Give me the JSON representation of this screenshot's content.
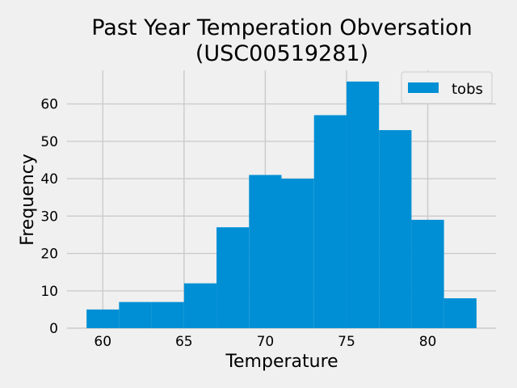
{
  "chart_data": {
    "type": "bar",
    "title_line1": "Past Year Temperation Obversation",
    "title_line2": "(USC00519281)",
    "xlabel": "Temperature",
    "ylabel": "Frequency",
    "bins": [
      {
        "x0": 59,
        "x1": 61,
        "count": 5
      },
      {
        "x0": 61,
        "x1": 63,
        "count": 7
      },
      {
        "x0": 63,
        "x1": 65,
        "count": 7
      },
      {
        "x0": 65,
        "x1": 67,
        "count": 12
      },
      {
        "x0": 67,
        "x1": 69,
        "count": 27
      },
      {
        "x0": 69,
        "x1": 71,
        "count": 41
      },
      {
        "x0": 71,
        "x1": 73,
        "count": 40
      },
      {
        "x0": 73,
        "x1": 75,
        "count": 57
      },
      {
        "x0": 75,
        "x1": 77,
        "count": 66
      },
      {
        "x0": 77,
        "x1": 79,
        "count": 53
      },
      {
        "x0": 79,
        "x1": 81,
        "count": 29
      },
      {
        "x0": 81,
        "x1": 83,
        "count": 8
      }
    ],
    "xlim": [
      57.8,
      84.2
    ],
    "ylim": [
      0,
      69
    ],
    "xticks": [
      60,
      65,
      70,
      75,
      80
    ],
    "yticks": [
      0,
      10,
      20,
      30,
      40,
      50,
      60
    ],
    "legend": {
      "label": "tobs",
      "color": "#008fd5",
      "position": "top-right"
    },
    "grid": true,
    "bar_color": "#008fd5"
  }
}
